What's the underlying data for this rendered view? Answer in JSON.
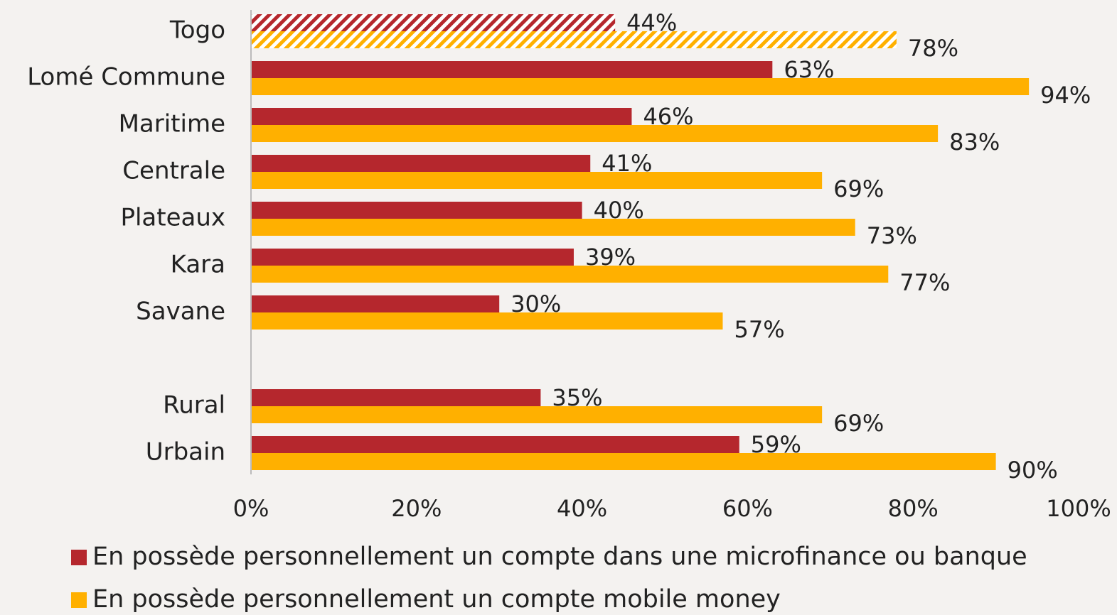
{
  "chart_data": {
    "type": "bar",
    "orientation": "horizontal",
    "categories": [
      "Togo",
      "Lomé Commune",
      "Maritime",
      "Centrale",
      "Plateaux",
      "Kara",
      "Savane",
      null,
      "Rural",
      "Urbain"
    ],
    "hatched_categories": [
      0
    ],
    "series": [
      {
        "name": "En possède personnellement un compte dans une microfinance ou banque",
        "color": "#b5272d",
        "values": [
          44,
          63,
          46,
          41,
          40,
          39,
          30,
          null,
          35,
          59
        ],
        "value_labels": [
          "44%",
          "63%",
          "46%",
          "41%",
          "40%",
          "39%",
          "30%",
          null,
          "35%",
          "59%"
        ]
      },
      {
        "name": "En possède personnellement un compte mobile money",
        "color": "#ffb000",
        "values": [
          78,
          94,
          83,
          69,
          73,
          77,
          57,
          null,
          69,
          90
        ],
        "value_labels": [
          "78%",
          "94%",
          "83%",
          "69%",
          "73%",
          "77%",
          "57%",
          null,
          "69%",
          "90%"
        ]
      }
    ],
    "xlim": [
      0,
      100
    ],
    "xticks": [
      {
        "value": 0,
        "label": "0%"
      },
      {
        "value": 20,
        "label": "20%"
      },
      {
        "value": 40,
        "label": "40%"
      },
      {
        "value": 60,
        "label": "60%"
      },
      {
        "value": 80,
        "label": "80%"
      },
      {
        "value": 100,
        "label": "100%"
      }
    ],
    "grid": false
  }
}
